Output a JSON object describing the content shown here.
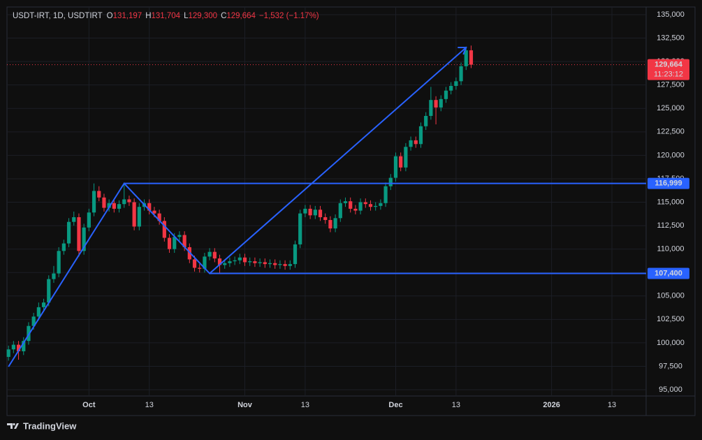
{
  "chart_data": {
    "type": "candlestick",
    "header": {
      "symbol": "USDT-IRT, 1D, USDTIRT",
      "fields": [
        {
          "key": "O",
          "value": "131,197"
        },
        {
          "key": "H",
          "value": "131,704"
        },
        {
          "key": "L",
          "value": "129,300"
        },
        {
          "key": "C",
          "value": "129,664"
        }
      ],
      "change": "−1,532 (−1.17%)"
    },
    "up_color": "#089981",
    "down_color": "#f23645",
    "x": [
      0,
      1,
      2,
      3,
      4,
      5,
      6,
      7,
      8,
      9,
      10,
      11,
      12,
      13,
      14,
      15,
      16,
      17,
      18,
      19,
      20,
      21,
      22,
      23,
      24,
      25,
      26,
      27,
      28,
      29,
      30,
      31,
      32,
      33,
      34,
      35,
      36,
      37,
      38,
      39,
      40,
      41,
      42,
      43,
      44,
      45,
      46,
      47,
      48,
      49,
      50,
      51,
      52,
      53,
      54,
      55,
      56,
      57,
      58,
      59,
      60,
      61,
      62,
      63,
      64,
      65,
      66,
      67,
      68,
      69,
      70,
      71,
      72,
      73,
      74,
      75,
      76,
      77,
      78,
      79,
      80,
      81,
      82,
      83,
      84,
      85,
      86,
      87,
      88,
      89,
      90,
      91,
      92
    ],
    "open": [
      98500,
      99300,
      99800,
      99100,
      100200,
      101800,
      102800,
      103800,
      104300,
      106800,
      107400,
      109800,
      110600,
      112900,
      113400,
      109800,
      112300,
      113900,
      116200,
      115500,
      114400,
      114900,
      114300,
      114800,
      115300,
      115000,
      112400,
      114500,
      114900,
      114100,
      113800,
      113000,
      111200,
      110000,
      111300,
      111500,
      110200,
      108900,
      108000,
      107900,
      109200,
      109700,
      109000,
      108300,
      108500,
      108700,
      108800,
      109100,
      108600,
      108700,
      108500,
      108600,
      108400,
      108500,
      108300,
      108400,
      108200,
      108400,
      110500,
      113800,
      114300,
      113600,
      114200,
      113400,
      113100,
      112200,
      113300,
      114900,
      115100,
      114300,
      114100,
      115000,
      114800,
      114500,
      114600,
      114900,
      116700,
      117600,
      119900,
      118700,
      120900,
      121600,
      121200,
      123100,
      124200,
      125900,
      125100,
      126000,
      126900,
      127400,
      127900,
      129500,
      131197
    ],
    "high": [
      99700,
      100200,
      100200,
      100600,
      102200,
      103200,
      104300,
      104700,
      107200,
      108200,
      110200,
      111000,
      113300,
      114000,
      113800,
      112700,
      114300,
      117000,
      116700,
      115900,
      115300,
      115300,
      115200,
      117000,
      115700,
      115400,
      114900,
      115300,
      115300,
      114500,
      114200,
      113400,
      111600,
      111700,
      111900,
      111900,
      110600,
      109300,
      108400,
      109600,
      110100,
      110100,
      109400,
      108900,
      109100,
      109200,
      109500,
      109500,
      109100,
      109100,
      109000,
      109000,
      108900,
      108900,
      108800,
      108800,
      108800,
      110900,
      114200,
      114700,
      114700,
      114600,
      114600,
      113800,
      113500,
      113700,
      115300,
      115500,
      115500,
      114700,
      115400,
      115400,
      115200,
      115000,
      115300,
      117100,
      118000,
      120300,
      120300,
      121300,
      122000,
      122000,
      123500,
      124600,
      127300,
      126300,
      126400,
      127300,
      127800,
      128300,
      129900,
      131600,
      131704
    ],
    "low": [
      98100,
      98900,
      98200,
      98700,
      99800,
      101400,
      102400,
      103400,
      103900,
      106400,
      107000,
      109400,
      110200,
      112500,
      109200,
      109400,
      111900,
      113500,
      115100,
      114000,
      114000,
      113900,
      113900,
      114400,
      114600,
      112000,
      112000,
      114100,
      113700,
      113400,
      112600,
      110800,
      109600,
      109600,
      110900,
      109800,
      108500,
      107600,
      107500,
      107500,
      108800,
      108600,
      107400,
      107900,
      108100,
      108300,
      108400,
      108200,
      108200,
      108100,
      108100,
      108000,
      108000,
      107900,
      107900,
      107800,
      107800,
      108000,
      110100,
      113400,
      113200,
      113200,
      113000,
      112700,
      111800,
      111800,
      112900,
      114500,
      113900,
      113700,
      113700,
      114400,
      114100,
      114100,
      114200,
      114500,
      116300,
      117200,
      118300,
      118300,
      120500,
      120800,
      120800,
      122700,
      123800,
      123300,
      124700,
      125600,
      126500,
      127000,
      127500,
      129100,
      129300
    ],
    "close": [
      99300,
      99800,
      99100,
      100200,
      101800,
      102800,
      103800,
      104300,
      106800,
      107400,
      109800,
      110600,
      112900,
      113400,
      109800,
      112300,
      113900,
      116200,
      115500,
      114400,
      114900,
      114300,
      114800,
      115300,
      115000,
      112400,
      114500,
      114900,
      114100,
      113800,
      113000,
      111200,
      110000,
      111300,
      111500,
      110200,
      108900,
      108000,
      107900,
      109200,
      109700,
      109000,
      108300,
      108500,
      108700,
      108800,
      109100,
      108600,
      108700,
      108500,
      108600,
      108400,
      108500,
      108300,
      108400,
      108200,
      108400,
      110500,
      113800,
      114300,
      113600,
      114200,
      113400,
      113100,
      112200,
      113300,
      114900,
      115100,
      114300,
      114100,
      115000,
      114800,
      114500,
      114600,
      114900,
      116700,
      117600,
      119900,
      118700,
      120900,
      121600,
      121200,
      123100,
      124200,
      125900,
      125100,
      126000,
      126900,
      127400,
      127900,
      129500,
      131197,
      129664
    ],
    "xlim": [
      -0.3,
      126.8
    ],
    "xticks": [
      {
        "value": 16,
        "label": "Oct"
      },
      {
        "value": 28,
        "label": "13"
      },
      {
        "value": 47,
        "label": "Nov"
      },
      {
        "value": 59,
        "label": "13"
      },
      {
        "value": 77,
        "label": "Dec"
      },
      {
        "value": 89,
        "label": "13"
      },
      {
        "value": 108,
        "label": "2026"
      },
      {
        "value": 120,
        "label": "13"
      }
    ],
    "ylim": [
      94405,
      135819
    ],
    "yticks": [
      {
        "value": 95000,
        "label": "95,000"
      },
      {
        "value": 97500,
        "label": "97,500"
      },
      {
        "value": 100000,
        "label": "100,000"
      },
      {
        "value": 102500,
        "label": "102,500"
      },
      {
        "value": 105000,
        "label": "105,000"
      },
      {
        "value": 107500,
        "label": "107,500"
      },
      {
        "value": 110000,
        "label": "110,000"
      },
      {
        "value": 112500,
        "label": "112,500"
      },
      {
        "value": 115000,
        "label": "115,000"
      },
      {
        "value": 117500,
        "label": "117,500"
      },
      {
        "value": 120000,
        "label": "120,000"
      },
      {
        "value": 122500,
        "label": "122,500"
      },
      {
        "value": 125000,
        "label": "125,000"
      },
      {
        "value": 127500,
        "label": "127,500"
      },
      {
        "value": 130000,
        "label": "130,000"
      },
      {
        "value": 132500,
        "label": "132,500"
      },
      {
        "value": 135000,
        "label": "135,000"
      }
    ],
    "grid": true,
    "last_price": {
      "value": 129664,
      "label": "129,664",
      "countdown": "11:23:12"
    },
    "trend_line": {
      "color": "#2962ff",
      "x": [
        0,
        23,
        40,
        91
      ],
      "y": [
        97460,
        117000,
        107400,
        131500
      ]
    },
    "horizontal_rays": [
      {
        "x": 23,
        "value": 116999,
        "label": "116,999"
      },
      {
        "x": 40,
        "value": 107400,
        "label": "107,400"
      }
    ],
    "brand": "TradingView"
  }
}
